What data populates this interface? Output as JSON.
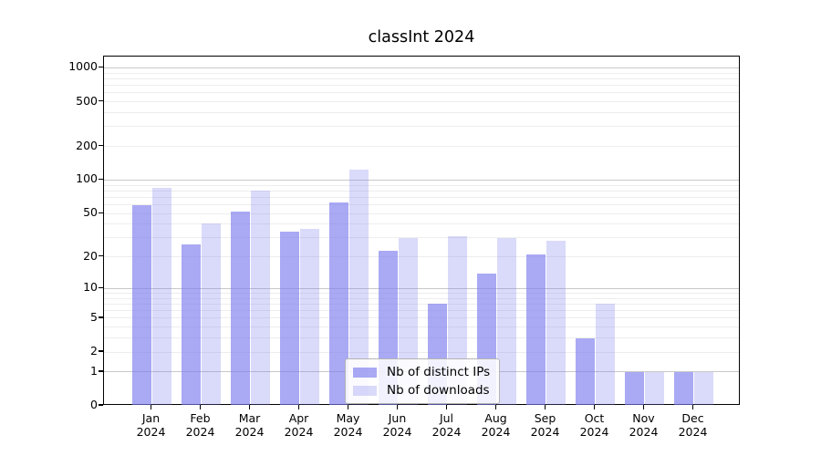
{
  "chart_data": {
    "type": "bar",
    "title": "classInt 2024",
    "categories": [
      "Jan 2024",
      "Feb 2024",
      "Mar 2024",
      "Apr 2024",
      "May 2024",
      "Jun 2024",
      "Jul 2024",
      "Aug 2024",
      "Sep 2024",
      "Oct 2024",
      "Nov 2024",
      "Dec 2024"
    ],
    "series": [
      {
        "name": "Nb of distinct IPs",
        "color": "#7b7bee",
        "alpha": 0.65,
        "values": [
          60,
          26,
          52,
          34,
          63,
          23,
          7,
          14,
          21,
          3,
          1,
          1
        ]
      },
      {
        "name": "Nb of downloads",
        "color": "#7b7bee",
        "alpha": 0.28,
        "values": [
          85,
          41,
          80,
          36,
          125,
          30,
          31,
          30,
          28,
          7,
          1,
          1
        ]
      }
    ],
    "xlabel": "",
    "ylabel": "",
    "yscale": "log1p",
    "ylim": [
      0,
      1100
    ],
    "yticks": [
      0,
      1,
      2,
      5,
      10,
      20,
      50,
      100,
      200,
      500,
      1000
    ],
    "major_gridlines": [
      1,
      10,
      100,
      1000
    ],
    "minor_gridlines": [
      2,
      3,
      4,
      5,
      6,
      7,
      8,
      9,
      20,
      30,
      40,
      50,
      60,
      70,
      80,
      90,
      200,
      300,
      400,
      500,
      600,
      700,
      800,
      900
    ],
    "grid": "horizontal",
    "legend_position": "lower center"
  }
}
